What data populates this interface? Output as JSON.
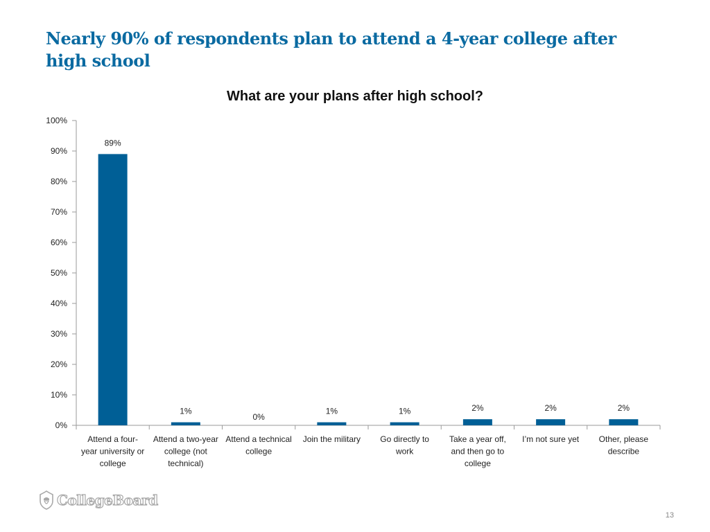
{
  "slide": {
    "title": "Nearly 90% of respondents plan to attend a 4-year college after high school",
    "page_number": "13",
    "logo_text": "CollegeBoard"
  },
  "colors": {
    "title": "#0a6aa1",
    "bar": "#005f96"
  },
  "chart_data": {
    "type": "bar",
    "title": "What are your plans after high school?",
    "categories": [
      "Attend a four-year university or college",
      "Attend a two-year college (not technical)",
      "Attend a technical college",
      "Join the military",
      "Go directly to work",
      "Take a year off, and then go to college",
      "I’m not sure yet",
      "Other, please describe"
    ],
    "category_lines": [
      [
        "Attend a four-",
        "year university or",
        "college"
      ],
      [
        "Attend a two-year",
        "college (not",
        "technical)"
      ],
      [
        "Attend a technical",
        "college"
      ],
      [
        "Join the military"
      ],
      [
        "Go directly to",
        "work"
      ],
      [
        "Take a year off,",
        "and then go to",
        "college"
      ],
      [
        "I’m not sure yet"
      ],
      [
        "Other, please",
        "describe"
      ]
    ],
    "values": [
      89,
      1,
      0,
      1,
      1,
      2,
      2,
      2
    ],
    "data_labels": [
      "89%",
      "1%",
      "0%",
      "1%",
      "1%",
      "2%",
      "2%",
      "2%"
    ],
    "ylim": [
      0,
      100
    ],
    "y_ticks": [
      0,
      10,
      20,
      30,
      40,
      50,
      60,
      70,
      80,
      90,
      100
    ],
    "y_tick_labels": [
      "0%",
      "10%",
      "20%",
      "30%",
      "40%",
      "50%",
      "60%",
      "70%",
      "80%",
      "90%",
      "100%"
    ],
    "grid": false,
    "legend": "none"
  }
}
